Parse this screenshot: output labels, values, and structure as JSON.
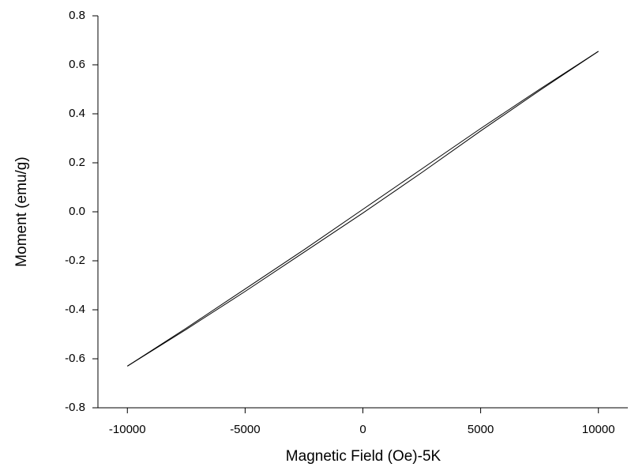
{
  "chart_data": {
    "type": "line",
    "xlabel": "Magnetic Field (Oe)-5K",
    "ylabel": "Moment (emu/g)",
    "x": [
      -10000,
      -7500,
      -5000,
      -2500,
      0,
      2500,
      5000,
      7500,
      10000
    ],
    "series": [
      {
        "color": "#000000",
        "values": [
          -0.63,
          -0.475,
          -0.315,
          -0.155,
          0.01,
          0.175,
          0.34,
          0.5,
          0.655
        ]
      },
      {
        "color": "#000000",
        "values": [
          -0.63,
          -0.48,
          -0.325,
          -0.165,
          -0.005,
          0.16,
          0.33,
          0.495,
          0.655
        ]
      }
    ],
    "xlim": [
      -11250,
      11250
    ],
    "ylim": [
      -0.8,
      0.8
    ],
    "xticks": [
      -10000,
      -5000,
      0,
      5000,
      10000
    ],
    "yticks": [
      -0.8,
      -0.6,
      -0.4,
      -0.2,
      {
        "value": 0,
        "label": "0.0"
      },
      0.2,
      0.4,
      0.6,
      0.8
    ],
    "grid": false
  }
}
